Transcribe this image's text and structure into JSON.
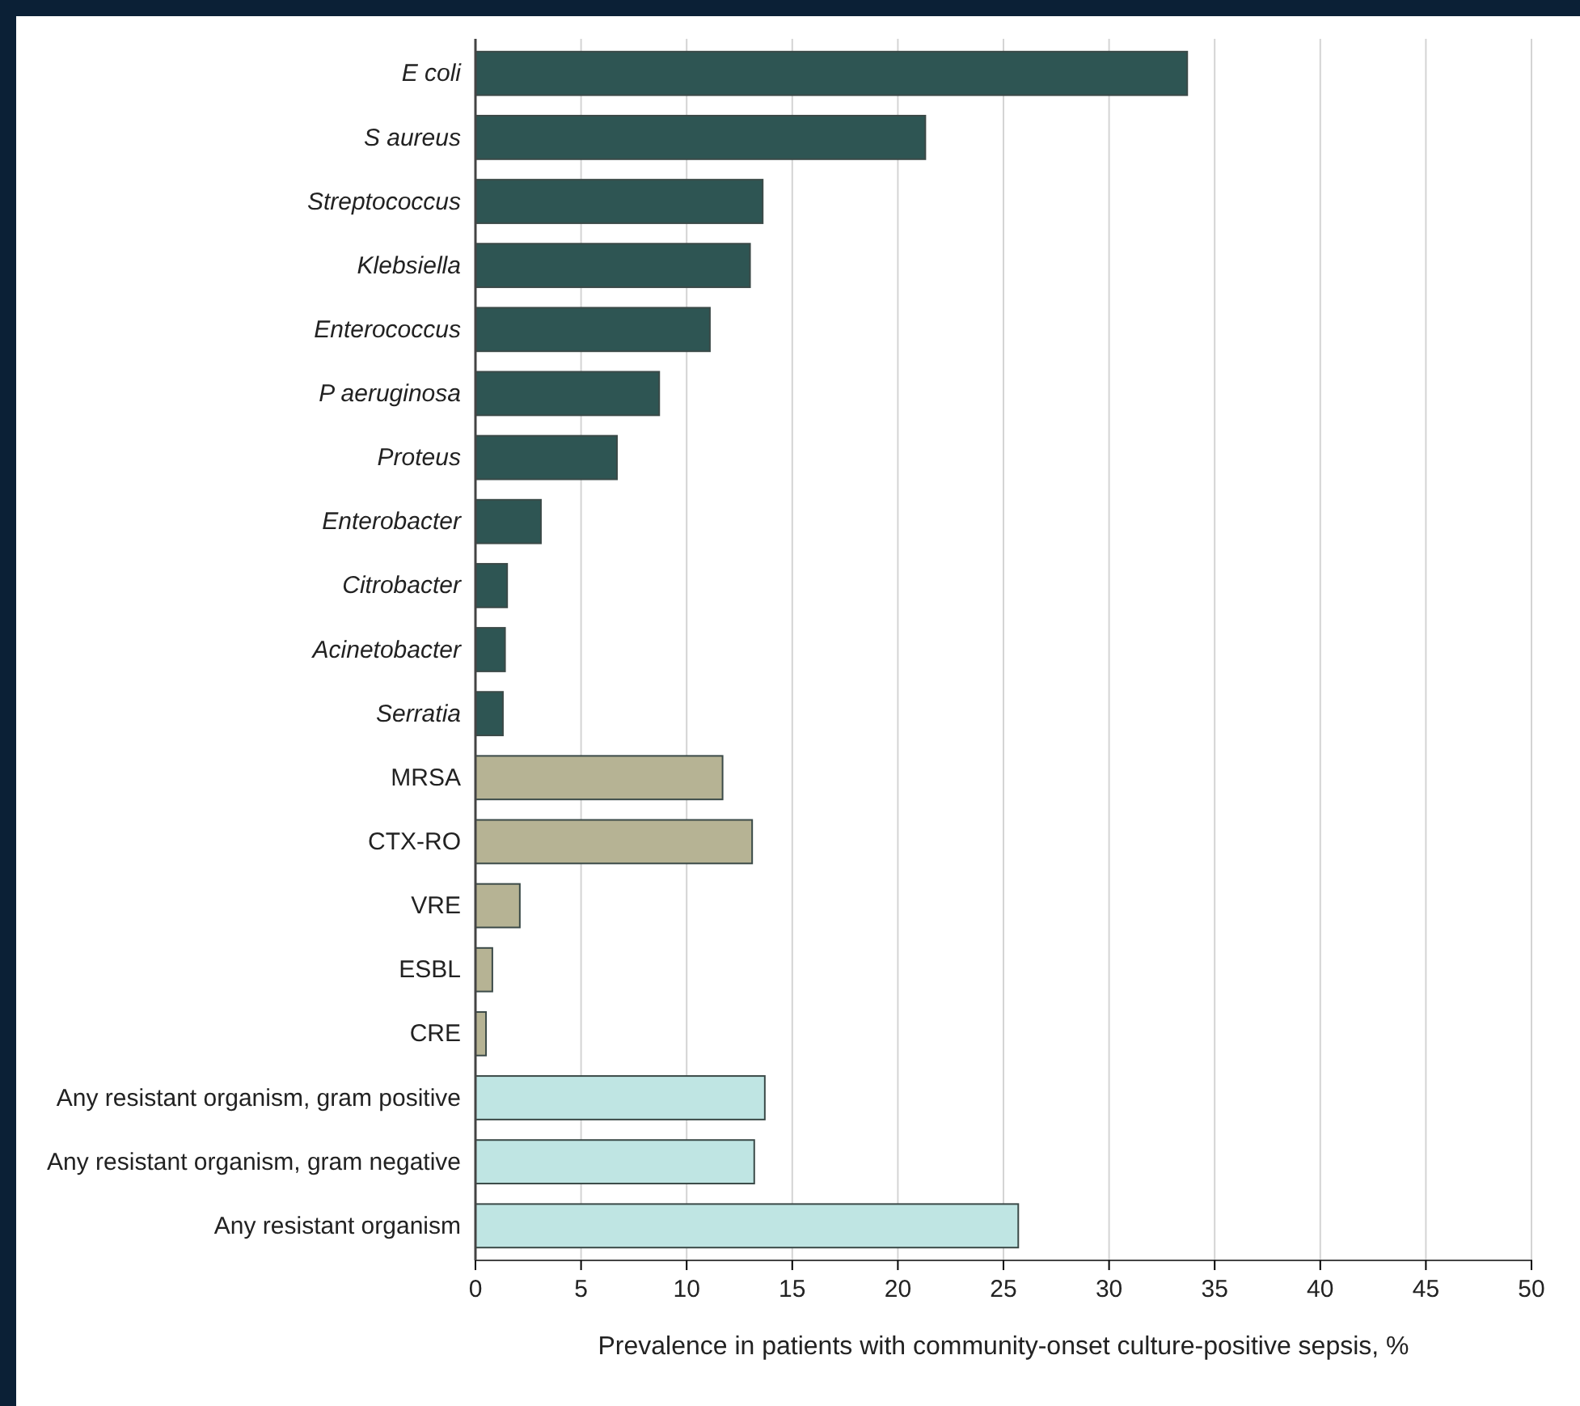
{
  "chart_data": {
    "type": "bar",
    "orientation": "horizontal",
    "xlabel": "Prevalence in patients with community-onset culture-positive sepsis, %",
    "categories": [
      "E coli",
      "S aureus",
      "Streptococcus",
      "Klebsiella",
      "Enterococcus",
      "P aeruginosa",
      "Proteus",
      "Enterobacter",
      "Citrobacter",
      "Acinetobacter",
      "Serratia",
      "MRSA",
      "CTX-RO",
      "VRE",
      "ESBL",
      "CRE",
      "Any resistant organism, gram positive",
      "Any resistant organism, gram negative",
      "Any resistant organism"
    ],
    "values": [
      33.7,
      21.3,
      13.6,
      13.0,
      11.1,
      8.7,
      6.7,
      3.1,
      1.5,
      1.4,
      1.3,
      11.7,
      13.1,
      2.1,
      0.8,
      0.5,
      13.7,
      13.2,
      25.7
    ],
    "colors": [
      "#2e5553",
      "#2e5553",
      "#2e5553",
      "#2e5553",
      "#2e5553",
      "#2e5553",
      "#2e5553",
      "#2e5553",
      "#2e5553",
      "#2e5553",
      "#2e5553",
      "#b6b394",
      "#b6b394",
      "#b6b394",
      "#b6b394",
      "#b6b394",
      "#bfe5e3",
      "#bfe5e3",
      "#bfe5e3"
    ],
    "xlim": [
      0,
      50
    ],
    "xticks": [
      0,
      5,
      10,
      15,
      20,
      25,
      30,
      35,
      40,
      45,
      50
    ],
    "grid": "x"
  }
}
